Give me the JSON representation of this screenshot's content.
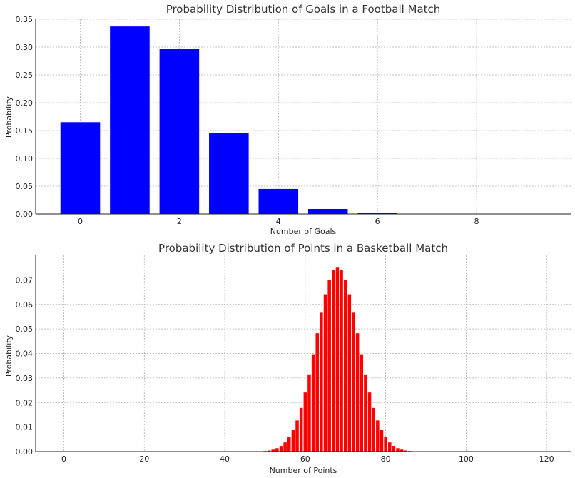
{
  "chart_data": [
    {
      "type": "bar",
      "title": "Probability Distribution of Goals in a Football Match",
      "xlabel": "Number of Goals",
      "ylabel": "Probability",
      "color": "#0000ff",
      "xlim": [
        -0.9,
        9.9
      ],
      "ylim": [
        0,
        0.35
      ],
      "xticks": [
        "0",
        "2",
        "4",
        "6",
        "8"
      ],
      "yticks": [
        "0.00",
        "0.05",
        "0.10",
        "0.15",
        "0.20",
        "0.25",
        "0.30",
        "0.35"
      ],
      "grid": true,
      "x": [
        0,
        1,
        2,
        3,
        4,
        5,
        6,
        7,
        8,
        9
      ],
      "values": [
        0.165,
        0.337,
        0.297,
        0.146,
        0.045,
        0.009,
        0.0013,
        0.0002,
        0.0,
        0.0
      ]
    },
    {
      "type": "bar",
      "title": "Probability Distribution of Points in a Basketball Match",
      "xlabel": "Number of Points",
      "ylabel": "Probability",
      "color": "#ff0000",
      "xlim": [
        -7,
        126
      ],
      "ylim": [
        0,
        0.08
      ],
      "xticks": [
        "0",
        "20",
        "40",
        "60",
        "80",
        "100",
        "120"
      ],
      "yticks": [
        "0.00",
        "0.01",
        "0.02",
        "0.03",
        "0.04",
        "0.05",
        "0.06",
        "0.07"
      ],
      "grid": true,
      "mean": 68,
      "std": 5.3,
      "x_range": [
        0,
        120
      ]
    }
  ]
}
